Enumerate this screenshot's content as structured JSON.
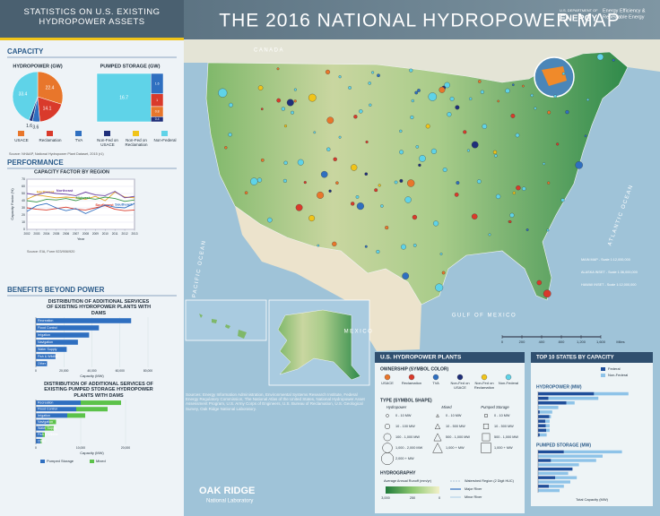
{
  "header": {
    "title": "THE 2016 NATIONAL HYDROPOWER MAP",
    "panel_title": "STATISTICS ON U.S. EXISTING HYDROPOWER ASSETS",
    "agency": "U.S. DEPARTMENT OF",
    "agency_name": "ENERGY",
    "office": [
      "Energy Efficiency &",
      "Renewable Energy"
    ]
  },
  "sections": {
    "capacity": "CAPACITY",
    "performance": "PERFORMANCE",
    "benefits": "BENEFITS BEYOND POWER"
  },
  "legend": {
    "names": [
      "USACE",
      "Reclamation",
      "TVA",
      "Non-Fed on USACE",
      "Non-Fed on Reclamation",
      "Non-Federal"
    ],
    "colors": [
      "#e8762b",
      "#d93a2b",
      "#2f6fc0",
      "#1f2f7a",
      "#f0c419",
      "#5fd3e8"
    ],
    "source": "Source: NHAAP, National Hydropower Plant Dataset, 2015 (r1)"
  },
  "chart_data": [
    {
      "type": "pie",
      "title": "HYDROPOWER (GW)",
      "values": [
        22.4,
        14.1,
        3.6,
        1.6,
        33.4
      ],
      "colors": [
        "#e8762b",
        "#d93a2b",
        "#2f6fc0",
        "#1f2f7a",
        "#5fd3e8"
      ]
    },
    {
      "type": "treemap",
      "title": "PUMPED STORAGE (GW)",
      "values": [
        16.7,
        1.6,
        1.0,
        0.8,
        0.4
      ],
      "colors": [
        "#5fd3e8",
        "#2f6fc0",
        "#d93a2b",
        "#e8762b",
        "#1f2f7a"
      ]
    },
    {
      "type": "line",
      "title": "CAPACITY FACTOR BY REGION",
      "y_label": "Capacity Factor (%)",
      "x_label": "Year",
      "x": [
        2002,
        2003,
        2004,
        2005,
        2006,
        2007,
        2008,
        2009,
        2010,
        2011,
        2012,
        2013
      ],
      "xlim": [
        2002,
        2013
      ],
      "xticks": [
        2002,
        2003,
        2004,
        2005,
        2006,
        2007,
        2008,
        2009,
        2010,
        2011,
        2012,
        2013
      ],
      "ylim": [
        0,
        70
      ],
      "yticks": [
        0,
        10,
        20,
        30,
        40,
        50,
        60,
        70
      ],
      "grid": true,
      "series": [
        {
          "name": "Northwest",
          "color": "#e0a020",
          "values": [
            42,
            48,
            46,
            44,
            45,
            44,
            42,
            46,
            40,
            52,
            45,
            44
          ]
        },
        {
          "name": "Northeast",
          "color": "#6a3fa0",
          "values": [
            50,
            48,
            52,
            50,
            49,
            47,
            52,
            48,
            47,
            53,
            44,
            46
          ]
        },
        {
          "name": "Midwest",
          "color": "#3a9a4a",
          "values": [
            40,
            38,
            42,
            41,
            43,
            40,
            44,
            42,
            45,
            43,
            39,
            41
          ]
        },
        {
          "name": "Southwest",
          "color": "#d93a2b",
          "values": [
            30,
            28,
            27,
            29,
            31,
            28,
            27,
            30,
            33,
            28,
            26,
            27
          ]
        },
        {
          "name": "Southeast",
          "color": "#2f6fc0",
          "values": [
            25,
            33,
            36,
            30,
            26,
            29,
            22,
            28,
            34,
            31,
            30,
            36
          ]
        }
      ],
      "source": "Source: EIA, Form 923/906/920"
    },
    {
      "type": "hbar",
      "title": "DISTRIBUTION OF ADDITIONAL SERVICES OF EXISTING HYDROPOWER PLANTS WITH DAMS",
      "categories": [
        "Recreation",
        "Flood Control",
        "Irrigation",
        "Navigation",
        "Water Supply",
        "Fish & Wildlife",
        "Other"
      ],
      "values": [
        68000,
        45000,
        38000,
        30000,
        22000,
        14000,
        8000
      ],
      "color": "#2f6fc0",
      "xlim": [
        0,
        80000
      ],
      "xticks": [
        0,
        {
          "value": 20000,
          "label": "20,000"
        },
        {
          "value": 40000,
          "label": "40,000"
        },
        {
          "value": 60000,
          "label": "60,000"
        },
        {
          "value": 80000,
          "label": "80,000"
        }
      ],
      "x_label": "Capacity (MW)"
    },
    {
      "type": "hbar",
      "title": "DISTRIBUTION OF ADDITIONAL SERVICES OF EXISTING PUMPED STORAGE HYDROPOWER PLANTS WITH DAMS",
      "categories": [
        "Recreation",
        "Flood Control",
        "Irrigation",
        "Navigation",
        "Water Supply",
        "Fish & Wildlife",
        "Other"
      ],
      "series": [
        {
          "name": "Pumped Storage",
          "color": "#2f6fc0",
          "values": [
            10000,
            9000,
            7000,
            3000,
            2000,
            1500,
            1000
          ]
        },
        {
          "name": "Mixed",
          "color": "#5cc24a",
          "values": [
            9000,
            7000,
            4000,
            1500,
            2000,
            500,
            300
          ]
        }
      ],
      "xlim": [
        0,
        25000
      ],
      "xticks": [
        0,
        {
          "value": 10000,
          "label": "10,000"
        },
        {
          "value": 20000,
          "label": "20,000"
        }
      ],
      "x_label": "Capacity (MW)"
    },
    {
      "type": "hbar",
      "title": "HYDROPOWER (MW)",
      "categories": [
        null,
        null,
        null,
        null,
        null,
        null,
        null,
        null,
        null,
        null
      ],
      "series": [
        {
          "name": "Federal",
          "color": "#1f4e9a",
          "values": [
            13000,
            2400,
            6600,
            0,
            400,
            2600,
            1700,
            1800,
            1900,
            400
          ]
        },
        {
          "name": "Non-Federal",
          "color": "#8ec3e8",
          "values": [
            8000,
            11600,
            1900,
            4700,
            2900,
            400,
            1000,
            900,
            800,
            1600
          ]
        }
      ],
      "xlim": [
        0,
        25000
      ]
    },
    {
      "type": "hbar",
      "title": "PUMPED STORAGE (MW)",
      "categories": [
        null,
        null,
        null,
        null,
        null,
        null,
        null,
        null,
        null,
        null
      ],
      "series": [
        {
          "name": "Federal",
          "color": "#1f4e9a",
          "values": [
            1200,
            0,
            600,
            0,
            1600,
            0,
            800,
            0,
            500,
            0
          ]
        },
        {
          "name": "Non-Federal",
          "color": "#8ec3e8",
          "values": [
            2700,
            3000,
            2100,
            1900,
            0,
            1400,
            1000,
            1500,
            700,
            1000
          ]
        }
      ],
      "xlim": [
        0,
        5000
      ]
    }
  ],
  "top10": {
    "title": "TOP 10 STATES BY CAPACITY",
    "x_label": "Total Capacity (MW)"
  },
  "plants_legend": {
    "title": "U.S. HYDROPOWER PLANTS",
    "ownership_title": "OWNERSHIP (SYMBOL COLOR)",
    "type_title": "TYPE (SYMBOL SHAPE)",
    "columns": [
      "Hydropower",
      "Mixed",
      "Pumped Storage"
    ],
    "hydropower": [
      "0 - 10 MW",
      "10 - 100 MW",
      "100 - 1,000 MW",
      "1,000 - 2,000 MW",
      "2,000 + MW"
    ],
    "mixed": [
      "0 - 10 MW",
      "10 - 500 MW",
      "500 - 1,000 MW",
      "1,000 + MW"
    ],
    "pumped_storage": [
      "0 - 10 MW",
      "10 - 500 MW",
      "500 - 1,000 MW",
      "1,000 + MW"
    ],
    "hydrography_title": "HYDROGRAPHY",
    "runoff_title": "Average Annual Runoff (mm/yr)",
    "runoff_labels": [
      "3,000",
      "250",
      "0"
    ],
    "lines": [
      "Watershed Region (2 Digit HUC)",
      "Major River",
      "Minor River"
    ]
  },
  "map": {
    "labels": [
      "GULF OF MEXICO",
      "ATLANTIC OCEAN",
      "PACIFIC OCEAN",
      "CANADA",
      "MEXICO"
    ],
    "scale": [
      "0",
      "200",
      "400",
      "800",
      "1,200",
      "1,600",
      "Miles"
    ],
    "notes": [
      "MAIN MAP - Scale 1:12,000,000",
      "ALASKA INSET - Scale 1:36,000,000",
      "HAWAII INSET - Scale 1:12,000,000"
    ]
  },
  "credits": "Sources: Energy Information Administration, Environmental Systems Research Institute, Federal Energy Regulatory Commission, The National Atlas of the United States, National Hydropower Asset Assessment Program, U.S. Army Corps of Engineers, U.S. Bureau of Reclamation, U.S. Geological Survey, Oak Ridge National Laboratory.",
  "lab": {
    "name": "OAK RIDGE",
    "sub": "National Laboratory"
  }
}
